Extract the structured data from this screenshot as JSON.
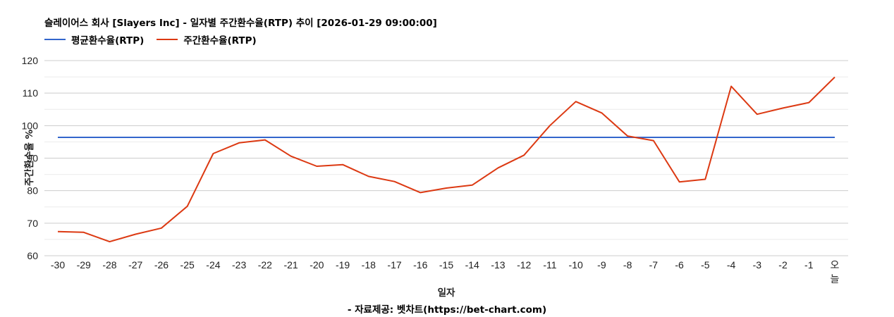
{
  "header": {
    "title": "슬레이어스 회사 [Slayers Inc] - 일자별 주간환수율(RTP) 추이 [2026-01-29 09:00:00]"
  },
  "legend": [
    {
      "label": "평균환수율(RTP)",
      "color": "#3366CC"
    },
    {
      "label": "주간환수율(RTP)",
      "color": "#DC3912"
    }
  ],
  "footer": {
    "source": "- 자료제공: 벳차트(https://bet-chart.com)"
  },
  "chart_data": {
    "type": "line",
    "title": "슬레이어스 회사 [Slayers Inc] - 일자별 주간환수율(RTP) 추이 [2026-01-29 09:00:00]",
    "xlabel": "일자",
    "ylabel": "주간환수율 %",
    "ylim": [
      60,
      120
    ],
    "yticks": [
      60,
      70,
      80,
      90,
      100,
      110,
      120
    ],
    "grid": true,
    "legend_position": "top",
    "categories": [
      "-30",
      "-29",
      "-28",
      "-27",
      "-26",
      "-25",
      "-24",
      "-23",
      "-22",
      "-21",
      "-20",
      "-19",
      "-18",
      "-17",
      "-16",
      "-15",
      "-14",
      "-13",
      "-12",
      "-11",
      "-10",
      "-9",
      "-8",
      "-7",
      "-6",
      "-5",
      "-4",
      "-3",
      "-2",
      "-1",
      "오늘"
    ],
    "series": [
      {
        "name": "평균환수율(RTP)",
        "color": "#3366CC",
        "values": [
          96.4,
          96.4,
          96.4,
          96.4,
          96.4,
          96.4,
          96.4,
          96.4,
          96.4,
          96.4,
          96.4,
          96.4,
          96.4,
          96.4,
          96.4,
          96.4,
          96.4,
          96.4,
          96.4,
          96.4,
          96.4,
          96.4,
          96.4,
          96.4,
          96.4,
          96.4,
          96.4,
          96.4,
          96.4,
          96.4,
          96.4
        ]
      },
      {
        "name": "주간환수율(RTP)",
        "color": "#DC3912",
        "values": [
          67.4,
          67.2,
          64.3,
          66.6,
          68.5,
          75.2,
          91.4,
          94.7,
          95.6,
          90.6,
          87.5,
          88.0,
          84.4,
          82.8,
          79.4,
          80.8,
          81.7,
          87.0,
          90.9,
          100.0,
          107.4,
          103.9,
          96.8,
          95.4,
          82.7,
          83.5,
          112.1,
          103.5,
          105.4,
          107.1,
          114.9
        ]
      }
    ],
    "source": "- 자료제공: 벳차트(https://bet-chart.com)"
  }
}
